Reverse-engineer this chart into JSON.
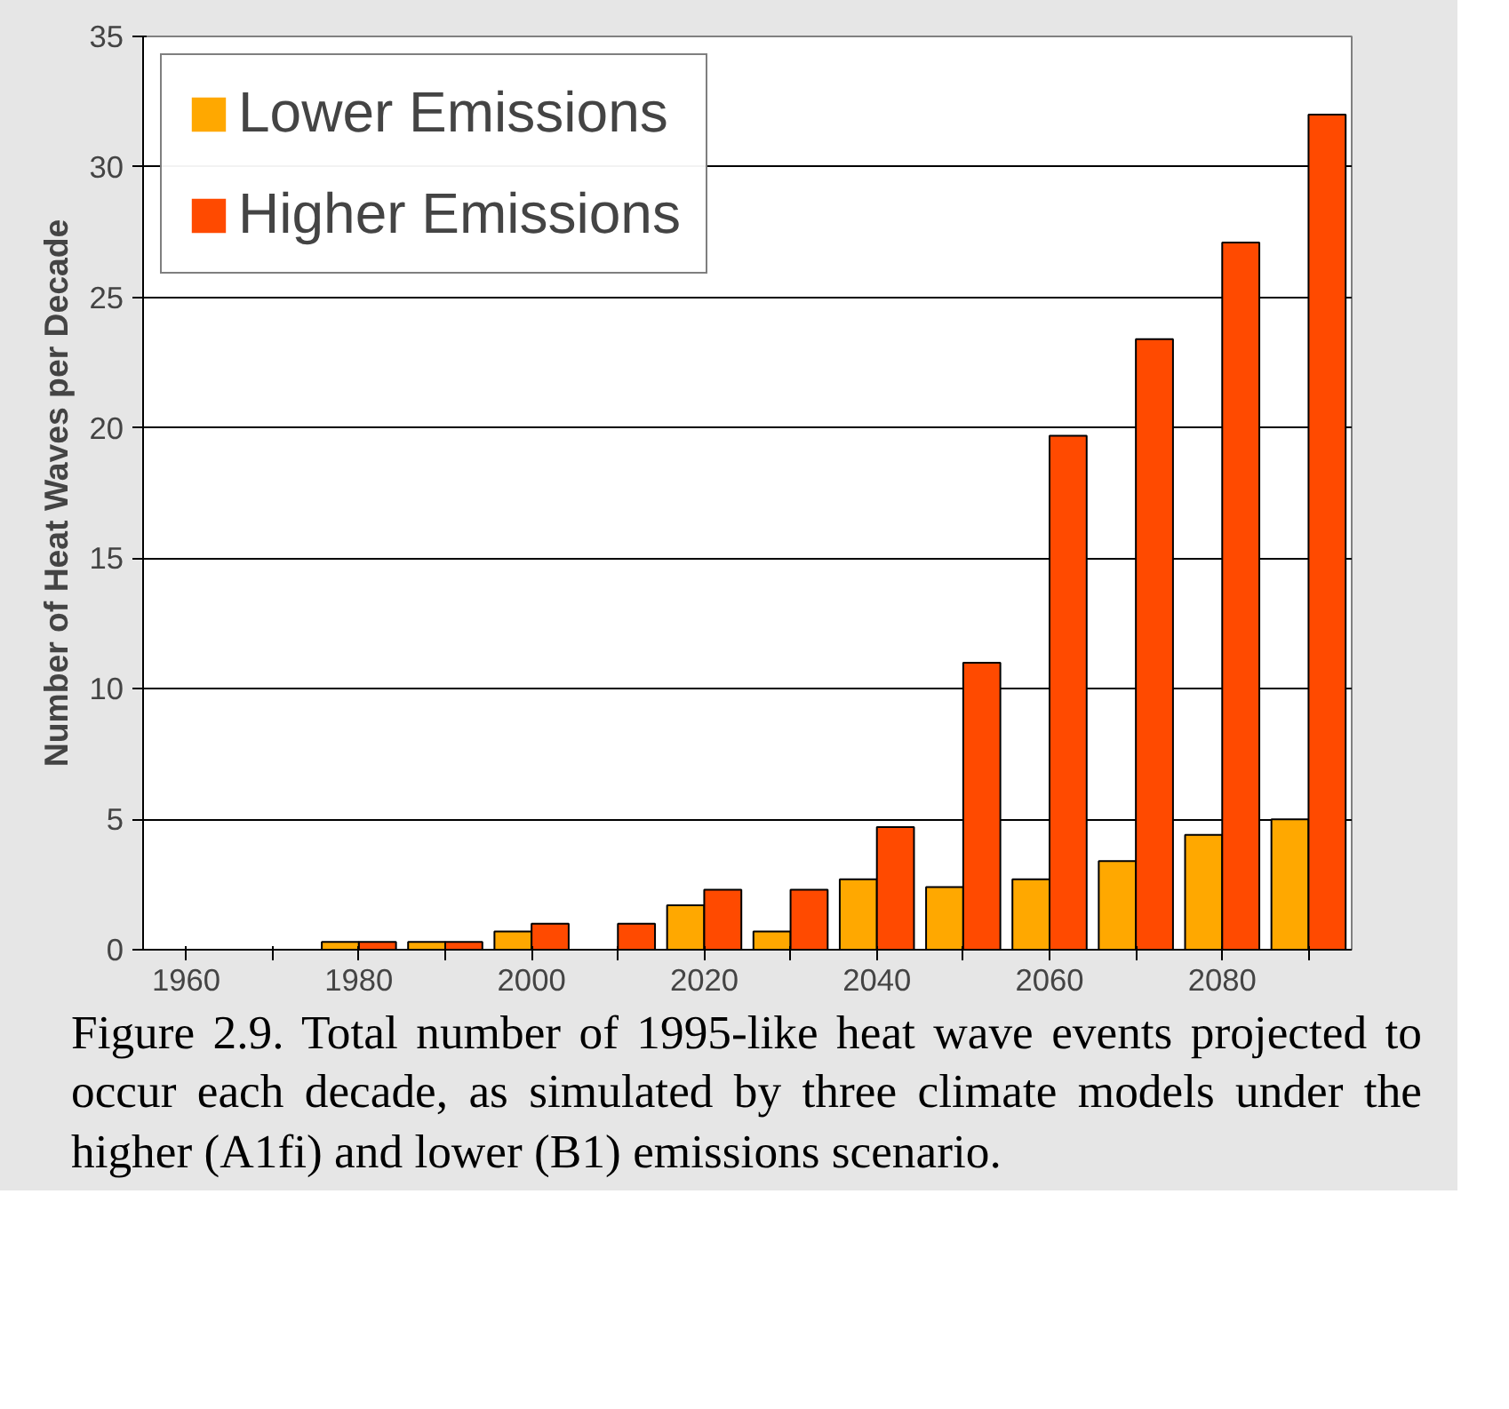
{
  "chart_data": {
    "type": "bar",
    "ylabel": "Number of Heat Waves per Decade",
    "categories": [
      "1960",
      null,
      "1980",
      null,
      "2000",
      null,
      "2020",
      null,
      "2040",
      null,
      "2060",
      null,
      "2080",
      null
    ],
    "series": [
      {
        "name": "Lower Emissions",
        "color": "#ffa800",
        "values": [
          0,
          0,
          0.3,
          0.3,
          0.7,
          0,
          1.7,
          0.7,
          2.7,
          2.4,
          2.7,
          3.4,
          4.4,
          5.0
        ]
      },
      {
        "name": "Higher Emissions",
        "color": "#ff4a00",
        "values": [
          0,
          0,
          0.3,
          0.3,
          1.0,
          1.0,
          2.3,
          2.3,
          4.7,
          11.0,
          19.7,
          23.4,
          27.1,
          32.0
        ]
      }
    ],
    "ylim": [
      0,
      35
    ],
    "yticks": [
      0,
      5,
      10,
      15,
      20,
      25,
      30,
      35
    ],
    "grid": "y",
    "legend": "top left",
    "annotations": [
      "Figure 2.9. Total number of 1995-like heat wave events projected to occur each decade, as simulated by three climate models under the higher (A1fi) and lower (B1) emissions scenario."
    ]
  }
}
